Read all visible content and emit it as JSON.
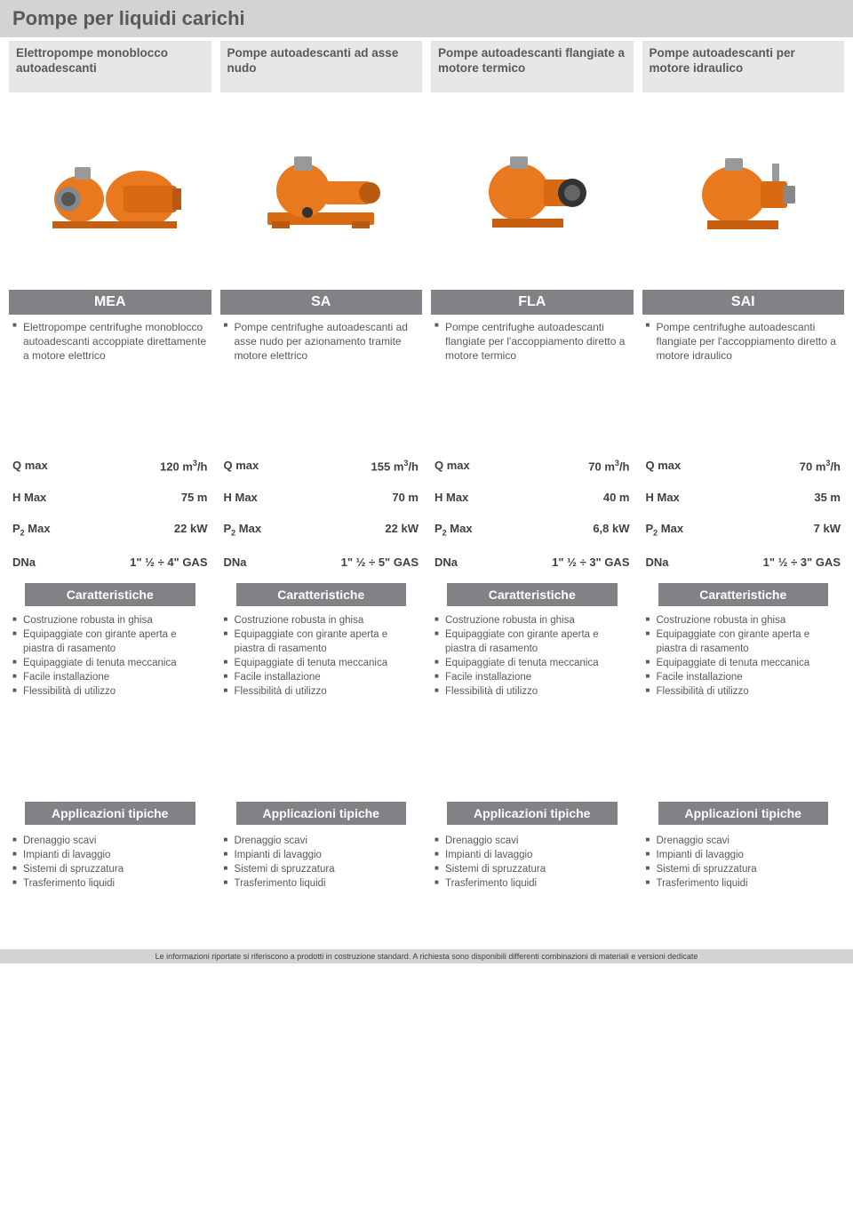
{
  "page_title": "Pompe per liquidi carichi",
  "colors": {
    "title_bg": "#d1d3d4",
    "subtitle_bg": "#e6e7e8",
    "code_bg": "#808285",
    "text": "#58595b",
    "pump_orange": "#e8791e",
    "pump_dark": "#b85a10"
  },
  "features_label": "Caratteristiche",
  "applications_label": "Applicazioni tipiche",
  "footer": "Le informazioni riportate si riferiscono a prodotti in costruzione standard. A richiesta sono disponibili differenti combinazioni di materiali e versioni dedicate",
  "products": [
    {
      "subtitle": "Elettropompe monoblocco autoadescanti",
      "code": "MEA",
      "description": [
        "Elettropompe centrifughe monoblocco autoadescanti accoppiate direttamente a motore elettrico"
      ],
      "specs": [
        {
          "label": "Q max",
          "value": "120 m³/h"
        },
        {
          "label": "H Max",
          "value": "75 m"
        },
        {
          "label": "P₂ Max",
          "value": "22 kW"
        },
        {
          "label": "DNa",
          "value": "1\" ½ ÷ 4\" GAS"
        }
      ],
      "features": [
        "Costruzione robusta in ghisa",
        "Equipaggiate con girante aperta e piastra di rasamento",
        "Equipaggiate di tenuta meccanica",
        "Facile installazione",
        "Flessibilità di utilizzo"
      ],
      "applications": [
        "Drenaggio scavi",
        "Impianti di lavaggio",
        "Sistemi di spruzzatura",
        "Trasferimento liquidi"
      ]
    },
    {
      "subtitle": "Pompe autoadescanti ad asse nudo",
      "code": "SA",
      "description": [
        "Pompe centrifughe autoadescanti ad asse nudo per azionamento tramite motore elettrico"
      ],
      "specs": [
        {
          "label": "Q max",
          "value": "155 m³/h"
        },
        {
          "label": "H Max",
          "value": "70 m"
        },
        {
          "label": "P₂ Max",
          "value": "22 kW"
        },
        {
          "label": "DNa",
          "value": "1\" ½ ÷ 5\" GAS"
        }
      ],
      "features": [
        "Costruzione robusta in ghisa",
        "Equipaggiate con girante aperta e piastra di rasamento",
        "Equipaggiate di tenuta meccanica",
        "Facile installazione",
        "Flessibilità di utilizzo"
      ],
      "applications": [
        "Drenaggio scavi",
        "Impianti di lavaggio",
        "Sistemi di spruzzatura",
        "Trasferimento liquidi"
      ]
    },
    {
      "subtitle": "Pompe autoadescanti flangiate a motore termico",
      "code": "FLA",
      "description": [
        "Pompe centrifughe autoadescanti flangiate per l'accoppiamento diretto a motore termico"
      ],
      "specs": [
        {
          "label": "Q max",
          "value": "70 m³/h"
        },
        {
          "label": "H Max",
          "value": "40 m"
        },
        {
          "label": "P₂ Max",
          "value": "6,8 kW"
        },
        {
          "label": "DNa",
          "value": "1\" ½ ÷ 3\" GAS"
        }
      ],
      "features": [
        "Costruzione robusta in ghisa",
        "Equipaggiate con girante aperta e piastra di rasamento",
        "Equipaggiate di tenuta meccanica",
        "Facile installazione",
        "Flessibilità di utilizzo"
      ],
      "applications": [
        "Drenaggio scavi",
        "Impianti di lavaggio",
        "Sistemi di spruzzatura",
        "Trasferimento liquidi"
      ]
    },
    {
      "subtitle": "Pompe autoadescanti per motore idraulico",
      "code": "SAI",
      "description": [
        "Pompe centrifughe autoadescanti flangiate per l'accoppiamento diretto a motore idraulico"
      ],
      "specs": [
        {
          "label": "Q max",
          "value": "70 m³/h"
        },
        {
          "label": "H Max",
          "value": "35 m"
        },
        {
          "label": "P₂ Max",
          "value": "7 kW"
        },
        {
          "label": "DNa",
          "value": "1\" ½ ÷ 3\" GAS"
        }
      ],
      "features": [
        "Costruzione robusta in ghisa",
        "Equipaggiate con girante aperta e piastra di rasamento",
        "Equipaggiate di tenuta meccanica",
        "Facile installazione",
        "Flessibilità di utilizzo"
      ],
      "applications": [
        "Drenaggio scavi",
        "Impianti di lavaggio",
        "Sistemi di spruzzatura",
        "Trasferimento liquidi"
      ]
    }
  ]
}
